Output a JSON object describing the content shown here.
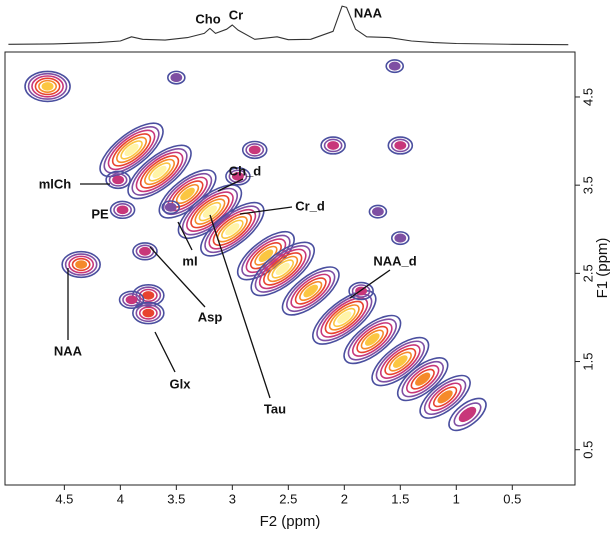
{
  "chart_data": {
    "type": "contour",
    "x_label": "F2 (ppm)",
    "y_label": "F1 (ppm)",
    "xlim": [
      5.03,
      -0.06
    ],
    "ylim": [
      0.1,
      5.01
    ],
    "xticks": [
      4.5,
      4.0,
      3.5,
      3.0,
      2.5,
      2.0,
      1.5,
      1.0,
      0.5
    ],
    "yticks": [
      4.5,
      3.5,
      2.5,
      1.5,
      0.5
    ],
    "annotations": [
      "Cho",
      "Cr",
      "NAA",
      "mlCh",
      "PE",
      "mI",
      "Ch_d",
      "Cr_d",
      "NAA_d",
      "Asp",
      "NAA",
      "Glx",
      "Tau"
    ],
    "projection": {
      "x": [
        5.0,
        4.6,
        4.2,
        4.0,
        3.9,
        3.8,
        3.6,
        3.4,
        3.25,
        3.2,
        3.15,
        3.05,
        3.0,
        2.95,
        2.8,
        2.6,
        2.5,
        2.3,
        2.1,
        2.02,
        1.98,
        1.9,
        1.8,
        1.6,
        1.4,
        1.2,
        1.0,
        0.5,
        0.0
      ],
      "values": [
        0.04,
        0.05,
        0.08,
        0.12,
        0.22,
        0.16,
        0.14,
        0.2,
        0.3,
        0.42,
        0.3,
        0.4,
        0.5,
        0.38,
        0.16,
        0.22,
        0.15,
        0.16,
        0.35,
        0.95,
        0.92,
        0.4,
        0.22,
        0.2,
        0.12,
        0.08,
        0.06,
        0.04,
        0.03
      ],
      "ylim": [
        0,
        1
      ]
    },
    "peaks": {
      "x": [
        4.65,
        3.9,
        3.65,
        3.4,
        3.2,
        3.0,
        2.7,
        2.55,
        2.3,
        2.0,
        1.75,
        1.5,
        1.3,
        1.1,
        0.9,
        4.35,
        4.02,
        3.98,
        3.55,
        3.78,
        3.75,
        3.9,
        3.75,
        2.8,
        2.1,
        1.5,
        1.55,
        3.5,
        1.85,
        1.7,
        1.5,
        2.95
      ],
      "y": [
        4.62,
        3.9,
        3.65,
        3.4,
        3.2,
        3.0,
        2.7,
        2.55,
        2.3,
        2.0,
        1.75,
        1.5,
        1.3,
        1.1,
        0.9,
        2.6,
        3.56,
        3.22,
        3.25,
        2.75,
        2.25,
        2.2,
        2.05,
        3.9,
        3.95,
        3.95,
        4.85,
        4.72,
        2.3,
        3.2,
        2.9,
        3.6
      ],
      "intensity": [
        5,
        6,
        6,
        5,
        6,
        6,
        5,
        6,
        5,
        6,
        5,
        5,
        4,
        4,
        2,
        4,
        2,
        2,
        1,
        2,
        3,
        2,
        3,
        2,
        2,
        2,
        1,
        1,
        2,
        1,
        1,
        2
      ]
    }
  }
}
